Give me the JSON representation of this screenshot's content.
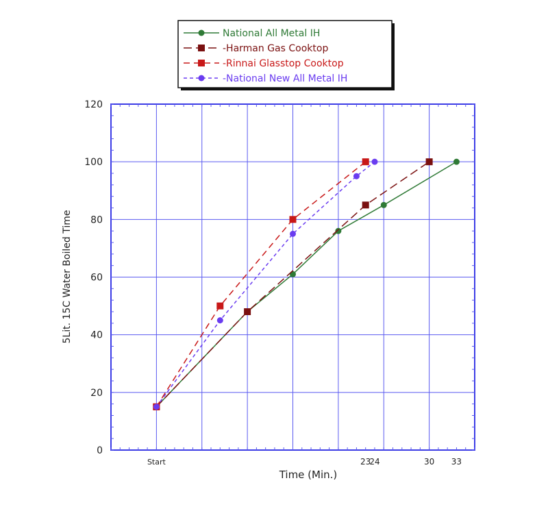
{
  "chart_data": {
    "type": "line",
    "title": "",
    "xlabel": "Time (Min.)",
    "ylabel": "5Lit. 15C Water Boiled Time",
    "xlim": [
      -5,
      35
    ],
    "ylim": [
      0,
      120
    ],
    "grid": true,
    "legend_position": "top-center",
    "y_ticks": [
      0,
      20,
      40,
      60,
      80,
      100,
      120
    ],
    "x_tick_labels": [
      {
        "value": 0,
        "label": "Start"
      },
      {
        "value": 23,
        "label": "23"
      },
      {
        "value": 24,
        "label": "24"
      },
      {
        "value": 30,
        "label": "30"
      },
      {
        "value": 33,
        "label": "33"
      }
    ],
    "series": [
      {
        "name": "National All Metal IH",
        "color": "#2f7a36",
        "marker": "circle",
        "dash": "solid",
        "x": [
          0,
          10,
          15,
          20,
          25,
          33
        ],
        "y": [
          15,
          48,
          61,
          76,
          85,
          100
        ]
      },
      {
        "name": "Harman Gas Cooktop",
        "color": "#7a1010",
        "marker": "square",
        "dash": "long",
        "x": [
          0,
          10,
          23,
          30
        ],
        "y": [
          15,
          48,
          85,
          100
        ]
      },
      {
        "name": "Rinnai Glasstop Cooktop",
        "color": "#c81818",
        "marker": "square",
        "dash": "medium",
        "x": [
          0,
          7,
          15,
          23
        ],
        "y": [
          15,
          50,
          80,
          100
        ]
      },
      {
        "name": "National New All Metal IH",
        "color": "#6a3cf0",
        "marker": "circle",
        "dash": "short",
        "x": [
          0,
          7,
          15,
          22,
          24
        ],
        "y": [
          15,
          45,
          75,
          95,
          100
        ]
      }
    ]
  }
}
